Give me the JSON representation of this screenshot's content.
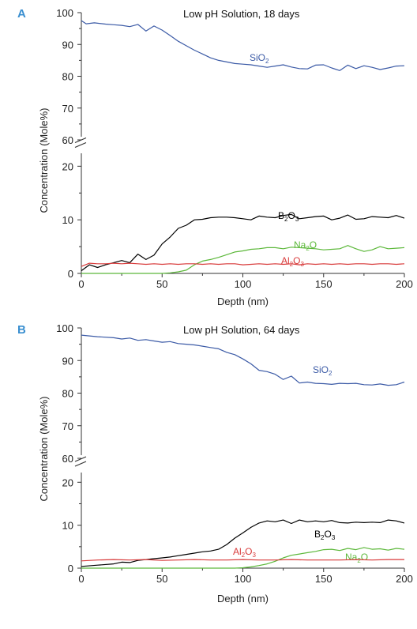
{
  "chart_data": [
    {
      "type": "line",
      "panel_label": "A",
      "title": "Low pH Solution, 18 days",
      "xlabel": "Depth (nm)",
      "ylabel": "Concentration (Mole%)",
      "xlim": [
        0,
        200
      ],
      "xticks": [
        "0",
        "50",
        "100",
        "150",
        "200"
      ],
      "y_upper_ticks": [
        "60",
        "70",
        "80",
        "90",
        "100"
      ],
      "y_lower_ticks": [
        "0",
        "10",
        "20"
      ],
      "axis_break": true,
      "series": [
        {
          "name": "SiO2",
          "main": "SiO",
          "sub": "2",
          "color": "#3b5aa6",
          "x": [
            0,
            3,
            8,
            15,
            20,
            25,
            30,
            35,
            40,
            45,
            50,
            55,
            60,
            65,
            70,
            75,
            80,
            85,
            90,
            95,
            100,
            105,
            110,
            115,
            120,
            125,
            130,
            135,
            140,
            145,
            150,
            155,
            160,
            165,
            170,
            175,
            180,
            185,
            190,
            195,
            200
          ],
          "y": [
            97.5,
            96.5,
            96.8,
            96.4,
            96.2,
            96.0,
            95.6,
            96.3,
            94.2,
            95.8,
            94.5,
            92.8,
            91.0,
            89.6,
            88.2,
            87.0,
            85.8,
            85.0,
            84.5,
            84.0,
            83.8,
            83.6,
            83.2,
            82.8,
            83.2,
            83.6,
            82.9,
            82.4,
            82.3,
            83.5,
            83.6,
            82.6,
            81.8,
            83.5,
            82.4,
            83.3,
            82.8,
            82.1,
            82.6,
            83.2,
            83.3
          ]
        },
        {
          "name": "B2O3",
          "main": "B",
          "sub": "2",
          "main2": "O",
          "sub2": "3",
          "color": "#000000",
          "x": [
            0,
            5,
            10,
            15,
            20,
            25,
            30,
            35,
            40,
            45,
            50,
            55,
            60,
            65,
            70,
            75,
            80,
            85,
            90,
            95,
            100,
            105,
            110,
            115,
            120,
            125,
            130,
            135,
            140,
            145,
            150,
            155,
            160,
            165,
            170,
            175,
            180,
            185,
            190,
            195,
            200
          ],
          "y": [
            0.5,
            1.6,
            1.1,
            1.6,
            2.0,
            2.4,
            2.0,
            3.6,
            2.6,
            3.4,
            5.5,
            6.8,
            8.4,
            9.0,
            10.0,
            10.1,
            10.4,
            10.5,
            10.5,
            10.4,
            10.2,
            10.0,
            10.7,
            10.5,
            10.4,
            10.8,
            11.0,
            10.2,
            10.4,
            10.6,
            10.7,
            10.0,
            10.3,
            10.9,
            10.1,
            10.2,
            10.6,
            10.5,
            10.4,
            10.8,
            10.3
          ]
        },
        {
          "name": "Na2O",
          "main": "Na",
          "sub": "2",
          "main2": "O",
          "sub2": "",
          "color": "#5cb83a",
          "x": [
            0,
            20,
            40,
            50,
            55,
            60,
            65,
            70,
            75,
            80,
            85,
            90,
            95,
            100,
            105,
            110,
            115,
            120,
            125,
            130,
            135,
            140,
            145,
            150,
            155,
            160,
            165,
            170,
            175,
            180,
            185,
            190,
            195,
            200
          ],
          "y": [
            0,
            0,
            0,
            0,
            0.1,
            0.3,
            0.6,
            1.6,
            2.3,
            2.6,
            3.0,
            3.5,
            4.0,
            4.2,
            4.5,
            4.6,
            4.8,
            4.8,
            4.6,
            4.9,
            4.8,
            4.7,
            4.6,
            4.4,
            4.5,
            4.6,
            5.2,
            4.6,
            4.1,
            4.4,
            5.0,
            4.6,
            4.7,
            4.8
          ]
        },
        {
          "name": "Al2O3",
          "main": "Al",
          "sub": "2",
          "main2": "O",
          "sub2": "3",
          "color": "#d83a3a",
          "x": [
            0,
            5,
            10,
            15,
            20,
            25,
            30,
            35,
            40,
            45,
            50,
            55,
            60,
            65,
            70,
            75,
            80,
            85,
            90,
            95,
            100,
            105,
            110,
            115,
            120,
            125,
            130,
            135,
            140,
            145,
            150,
            155,
            160,
            165,
            170,
            175,
            180,
            185,
            190,
            195,
            200
          ],
          "y": [
            1.3,
            1.9,
            1.8,
            1.8,
            1.9,
            1.8,
            1.9,
            1.8,
            1.7,
            1.8,
            1.7,
            1.8,
            1.7,
            1.8,
            1.8,
            1.7,
            1.8,
            1.7,
            1.8,
            1.8,
            1.6,
            1.7,
            1.8,
            1.7,
            1.8,
            1.7,
            1.8,
            1.6,
            1.8,
            1.7,
            1.8,
            1.7,
            1.8,
            1.7,
            1.8,
            1.8,
            1.7,
            1.8,
            1.8,
            1.7,
            1.8
          ]
        }
      ]
    },
    {
      "type": "line",
      "panel_label": "B",
      "title": "Low pH Solution, 64 days",
      "xlabel": "Depth (nm)",
      "ylabel": "Concentration (Mole%)",
      "xlim": [
        0,
        200
      ],
      "xticks": [
        "0",
        "50",
        "100",
        "150",
        "200"
      ],
      "y_upper_ticks": [
        "60",
        "70",
        "80",
        "90",
        "100"
      ],
      "y_lower_ticks": [
        "0",
        "10",
        "20"
      ],
      "axis_break": true,
      "series": [
        {
          "name": "SiO2",
          "main": "SiO",
          "sub": "2",
          "color": "#3b5aa6",
          "x": [
            0,
            10,
            20,
            25,
            30,
            35,
            40,
            45,
            50,
            55,
            60,
            65,
            70,
            75,
            80,
            85,
            90,
            95,
            100,
            105,
            110,
            115,
            120,
            125,
            130,
            135,
            140,
            145,
            150,
            155,
            160,
            165,
            170,
            175,
            180,
            185,
            190,
            195,
            200
          ],
          "y": [
            97.8,
            97.3,
            97.0,
            96.6,
            96.9,
            96.2,
            96.4,
            96.0,
            95.6,
            95.8,
            95.2,
            95.0,
            94.8,
            94.4,
            94.0,
            93.6,
            92.5,
            91.8,
            90.5,
            89.0,
            87.0,
            86.6,
            85.8,
            84.2,
            85.2,
            83.1,
            83.4,
            83.0,
            82.9,
            82.7,
            83.0,
            82.9,
            83.0,
            82.6,
            82.5,
            82.8,
            82.4,
            82.6,
            83.4
          ]
        },
        {
          "name": "B2O3",
          "main": "B",
          "sub": "2",
          "main2": "O",
          "sub2": "3",
          "color": "#000000",
          "x": [
            0,
            10,
            20,
            25,
            30,
            35,
            40,
            45,
            50,
            55,
            60,
            65,
            70,
            75,
            80,
            85,
            90,
            95,
            100,
            105,
            110,
            115,
            120,
            125,
            130,
            135,
            140,
            145,
            150,
            155,
            160,
            165,
            170,
            175,
            180,
            185,
            190,
            195,
            200
          ],
          "y": [
            0.4,
            0.7,
            1.0,
            1.4,
            1.3,
            1.8,
            2.0,
            2.2,
            2.4,
            2.6,
            2.9,
            3.2,
            3.5,
            3.8,
            4.0,
            4.4,
            5.5,
            7.0,
            8.2,
            9.5,
            10.5,
            11.0,
            10.8,
            11.2,
            10.4,
            11.2,
            10.8,
            11.0,
            10.8,
            11.1,
            10.6,
            10.5,
            10.7,
            10.6,
            10.7,
            10.6,
            11.2,
            11.0,
            10.5
          ]
        },
        {
          "name": "Na2O",
          "main": "Na",
          "sub": "2",
          "main2": "O",
          "sub2": "",
          "color": "#5cb83a",
          "x": [
            0,
            20,
            40,
            60,
            80,
            90,
            95,
            100,
            105,
            110,
            115,
            120,
            125,
            130,
            135,
            140,
            145,
            150,
            155,
            160,
            165,
            170,
            175,
            180,
            185,
            190,
            195,
            200
          ],
          "y": [
            0,
            0,
            0,
            0,
            0,
            0,
            0,
            0.1,
            0.3,
            0.6,
            1.0,
            1.6,
            2.4,
            3.0,
            3.3,
            3.6,
            3.9,
            4.3,
            4.4,
            4.1,
            4.6,
            4.3,
            4.8,
            4.4,
            4.5,
            4.2,
            4.6,
            4.4
          ]
        },
        {
          "name": "Al2O3",
          "main": "Al",
          "sub": "2",
          "main2": "O",
          "sub2": "3",
          "color": "#d83a3a",
          "x": [
            0,
            10,
            20,
            30,
            40,
            50,
            60,
            70,
            80,
            90,
            100,
            110,
            120,
            130,
            140,
            150,
            160,
            170,
            180,
            190,
            200
          ],
          "y": [
            1.7,
            1.9,
            2.0,
            1.9,
            2.0,
            1.8,
            1.9,
            2.0,
            1.9,
            1.9,
            2.0,
            1.9,
            1.9,
            2.0,
            1.9,
            1.9,
            1.9,
            2.0,
            1.9,
            2.0,
            2.0
          ]
        }
      ]
    }
  ]
}
